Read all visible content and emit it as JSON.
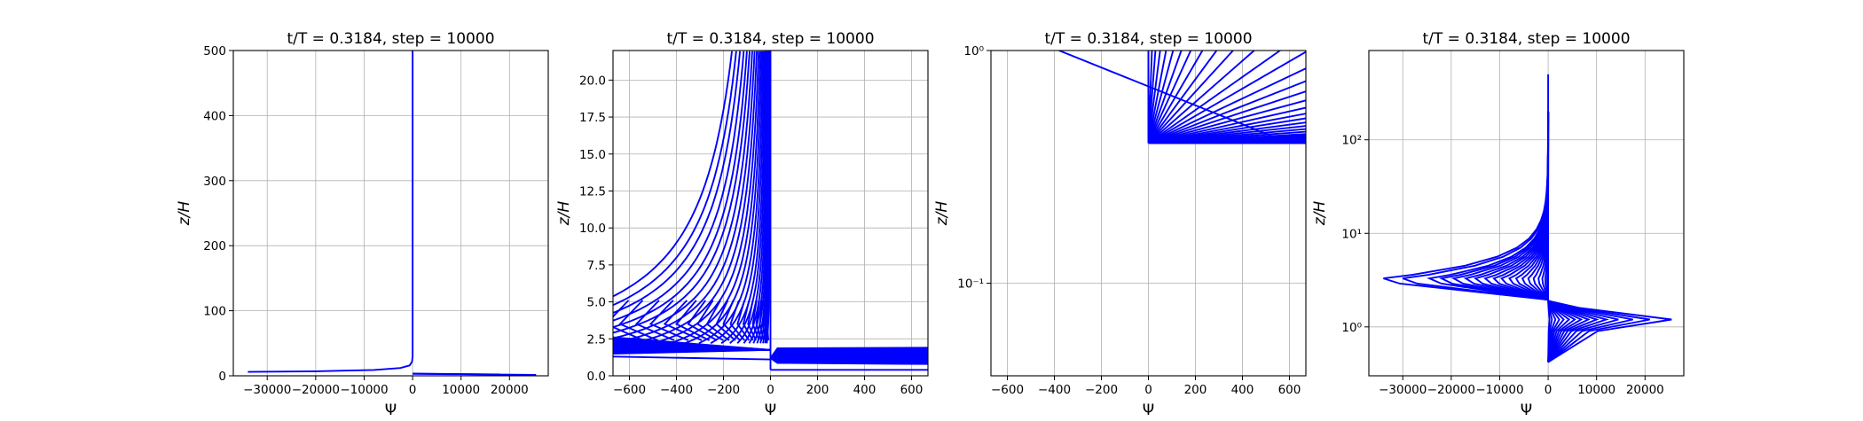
{
  "chart_data": [
    {
      "type": "line",
      "title": "t/T = 0.3184, step = 10000",
      "xlabel": "Ψ",
      "ylabel": "z/H",
      "xscale": "linear",
      "yscale": "linear",
      "xlim": [
        -37000,
        28000
      ],
      "ylim": [
        0,
        500
      ],
      "xticks": [
        -30000,
        -20000,
        -10000,
        0,
        10000,
        20000
      ],
      "xtick_labels": [
        "−30000",
        "−20000",
        "−10000",
        "0",
        "10000",
        "20000"
      ],
      "yticks": [
        0,
        100,
        200,
        300,
        400,
        500
      ],
      "ytick_labels": [
        "0",
        "100",
        "200",
        "300",
        "400",
        "500"
      ],
      "grid": true,
      "line_color": "#0000ff",
      "series": [
        {
          "x": [
            -34000,
            -20000,
            -8000,
            -2500,
            -600,
            -100,
            0,
            0
          ],
          "y": [
            6,
            7,
            9,
            12,
            16,
            22,
            30,
            500
          ]
        },
        {
          "x": [
            0,
            10000,
            25500
          ],
          "y": [
            3,
            2.5,
            1.5
          ]
        },
        {
          "x": [
            0,
            8000,
            18000
          ],
          "y": [
            3.5,
            2.8,
            2.0
          ]
        }
      ]
    },
    {
      "type": "line",
      "title": "t/T = 0.3184, step = 10000",
      "xlabel": "Ψ",
      "ylabel": "z/H",
      "xscale": "linear",
      "yscale": "linear",
      "xlim": [
        -670,
        670
      ],
      "ylim": [
        0,
        22
      ],
      "xticks": [
        -600,
        -400,
        -200,
        0,
        200,
        400,
        600
      ],
      "xtick_labels": [
        "−600",
        "−400",
        "−200",
        "0",
        "200",
        "400",
        "600"
      ],
      "yticks": [
        0,
        2.5,
        5,
        7.5,
        10,
        12.5,
        15,
        17.5,
        20
      ],
      "ytick_labels": [
        "0.0",
        "2.5",
        "5.0",
        "7.5",
        "10.0",
        "12.5",
        "15.0",
        "17.5",
        "20.0"
      ],
      "grid": true,
      "line_color": "#0000ff",
      "curves": {
        "a_values": [
          -3600,
          -3200,
          -2850,
          -2500,
          -2200,
          -1950,
          -1700,
          -1480,
          -1280,
          -1100,
          -940,
          -800,
          -670,
          -560,
          -460,
          -380,
          -310,
          -250,
          -200,
          -160,
          -125,
          -95,
          -70,
          -50,
          -34
        ],
        "tip_x": [
          -700,
          -640,
          -570,
          -510,
          -450,
          -400,
          -350,
          -310,
          -270,
          -230,
          -200,
          -170,
          -140,
          -115,
          -95,
          -75,
          -60,
          -45,
          -32,
          -22,
          -14
        ],
        "tip_z": 3.5,
        "z_bottom": 2.2,
        "z_top": 22
      },
      "negative_bundle": {
        "x_left": -670,
        "z_min": 1.5,
        "z_max": 2.6,
        "count": 14
      },
      "positive_bundle": {
        "x_right": 670,
        "z_min": 0.8,
        "z_max": 1.9,
        "count": 14
      },
      "extra_lines": [
        {
          "x": [
            -670,
            0
          ],
          "y": [
            1.3,
            1.1
          ]
        },
        {
          "x": [
            0,
            670
          ],
          "y": [
            0.4,
            0.4
          ]
        }
      ],
      "vertical_line": {
        "x": 0,
        "y": [
          0.4,
          22
        ]
      }
    },
    {
      "type": "line",
      "title": "t/T = 0.3184, step = 10000",
      "xlabel": "Ψ",
      "ylabel": "z/H",
      "xscale": "linear",
      "yscale": "log",
      "xlim": [
        -670,
        670
      ],
      "ylim": [
        0.04,
        1.0
      ],
      "xticks": [
        -600,
        -400,
        -200,
        0,
        200,
        400,
        600
      ],
      "xtick_labels": [
        "−600",
        "−400",
        "−200",
        "0",
        "200",
        "400",
        "600"
      ],
      "yticks": [
        0.1,
        1.0
      ],
      "ytick_labels": [
        "10⁻¹",
        "10⁰"
      ],
      "grid": true,
      "line_color": "#0000ff",
      "fan": {
        "origin": [
          0,
          0.4
        ],
        "top_x": [
          0,
          15,
          30,
          50,
          75,
          105,
          140,
          180,
          230,
          290,
          360,
          450,
          560,
          680,
          830,
          1000,
          1200,
          1450,
          1750,
          2100,
          2500,
          3000,
          3600,
          4400,
          5400,
          6800
        ]
      },
      "extra_lines": [
        {
          "x": [
            -380,
            600
          ],
          "y": [
            1.0,
            0.4
          ]
        },
        {
          "x": [
            0,
            0
          ],
          "y": [
            0.4,
            1.0
          ]
        }
      ]
    },
    {
      "type": "line",
      "title": "t/T = 0.3184, step = 10000",
      "xlabel": "Ψ",
      "ylabel": "z/H",
      "xscale": "linear",
      "yscale": "log",
      "xlim": [
        -37000,
        28000
      ],
      "ylim": [
        0.3,
        900
      ],
      "xticks": [
        -30000,
        -20000,
        -10000,
        0,
        10000,
        20000
      ],
      "xtick_labels": [
        "−30000",
        "−20000",
        "−10000",
        "0",
        "10000",
        "20000"
      ],
      "yticks": [
        1,
        10,
        100
      ],
      "ytick_labels": [
        "10⁰",
        "10¹",
        "10²"
      ],
      "grid": true,
      "line_color": "#0000ff",
      "neg_amplitudes": [
        -34000,
        -30000,
        -24500,
        -22000,
        -19500,
        -17000,
        -15000,
        -13000,
        -11200,
        -9600,
        -8000,
        -6600,
        -5300,
        -4100,
        -3000,
        -2000,
        -1200,
        -600,
        -200
      ],
      "pos_amplitudes": [
        25500,
        21000,
        17500,
        14500,
        12000,
        10000,
        8300,
        6800,
        5500,
        4300,
        3200,
        2300,
        1500,
        800,
        300
      ],
      "vertical_line": {
        "x": 0,
        "y": [
          1.9,
          500
        ]
      }
    }
  ]
}
